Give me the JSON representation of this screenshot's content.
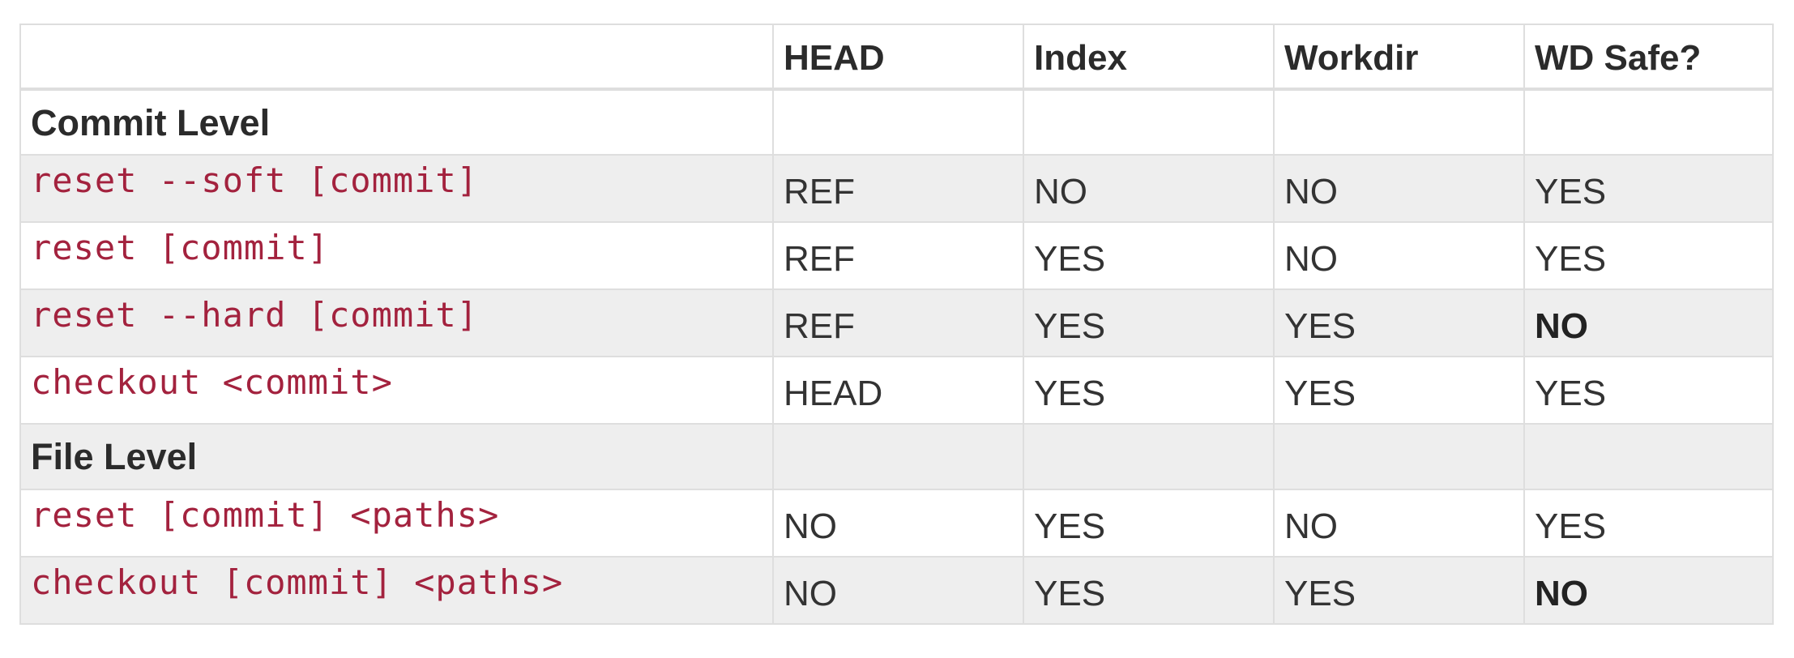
{
  "table": {
    "headers": [
      "",
      "HEAD",
      "Index",
      "Workdir",
      "WD Safe?"
    ],
    "rows": [
      {
        "type": "section",
        "label": "Commit Level"
      },
      {
        "type": "data",
        "command": "reset --soft [commit]",
        "head": "REF",
        "index": "NO",
        "workdir": "NO",
        "wd_safe": "YES"
      },
      {
        "type": "data",
        "command": "reset [commit]",
        "head": "REF",
        "index": "YES",
        "workdir": "NO",
        "wd_safe": "YES"
      },
      {
        "type": "data",
        "command": "reset --hard [commit]",
        "head": "REF",
        "index": "YES",
        "workdir": "YES",
        "wd_safe": "NO",
        "wd_safe_emphasis": true
      },
      {
        "type": "data",
        "command": "checkout <commit>",
        "head": "HEAD",
        "index": "YES",
        "workdir": "YES",
        "wd_safe": "YES"
      },
      {
        "type": "section",
        "label": "File Level"
      },
      {
        "type": "data",
        "command": "reset [commit] <paths>",
        "head": "NO",
        "index": "YES",
        "workdir": "NO",
        "wd_safe": "YES"
      },
      {
        "type": "data",
        "command": "checkout [commit] <paths>",
        "head": "NO",
        "index": "YES",
        "workdir": "YES",
        "wd_safe": "NO",
        "wd_safe_emphasis": true
      }
    ]
  },
  "colors": {
    "command_text": "#a3223e",
    "body_text": "#333333",
    "striped_row": "#eeeeee",
    "border": "#dedede"
  }
}
